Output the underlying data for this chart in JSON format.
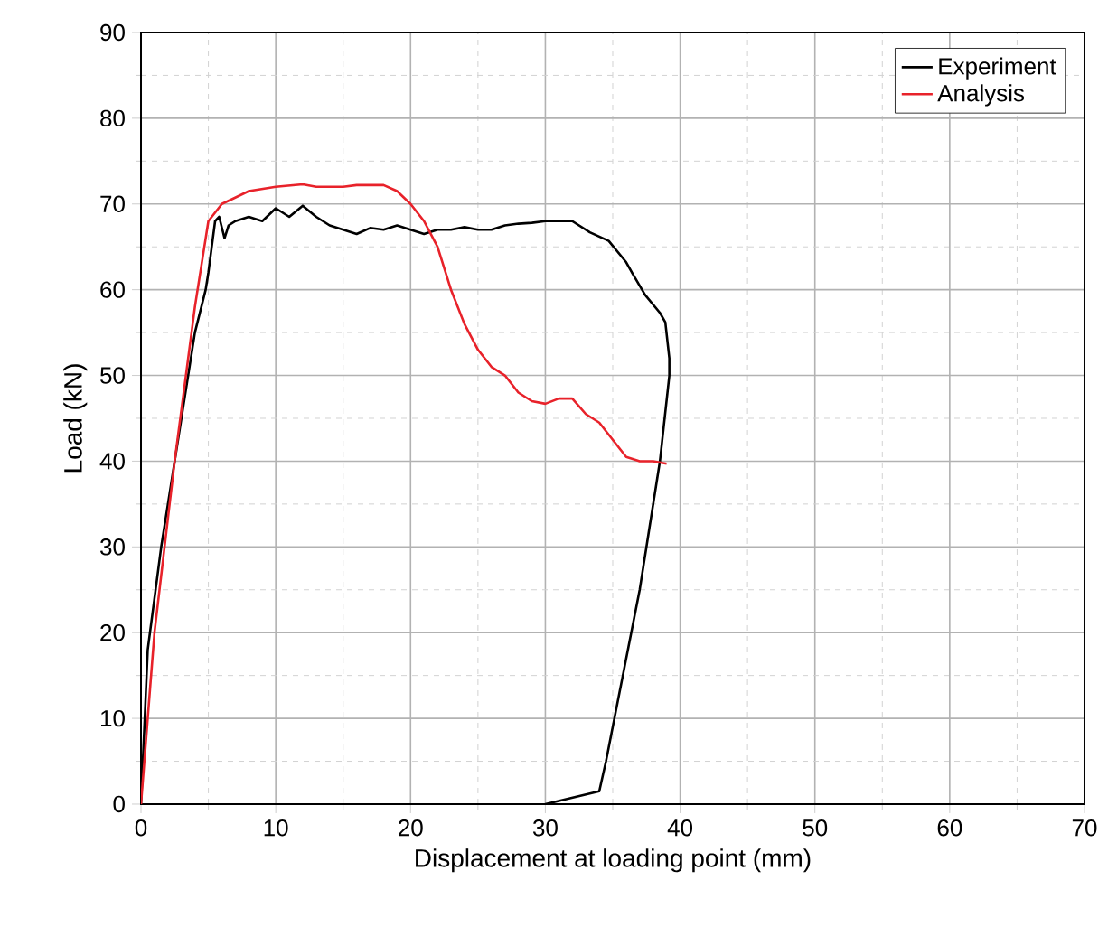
{
  "chart_data": {
    "type": "line",
    "xlabel": "Displacement at loading point (mm)",
    "ylabel": "Load (kN)",
    "xlim": [
      0,
      70
    ],
    "ylim": [
      0,
      90
    ],
    "xticks": [
      0,
      10,
      20,
      30,
      40,
      50,
      60,
      70
    ],
    "yticks": [
      0,
      10,
      20,
      30,
      40,
      50,
      60,
      70,
      80,
      90
    ],
    "grid": true,
    "legend": "top right",
    "line_style": "solid",
    "marker": "none",
    "series": [
      {
        "name": "Experiment",
        "color": "#000000",
        "x": [
          0,
          0.5,
          1.5,
          3,
          4,
          4.8,
          5,
          5.5,
          5.8,
          6.2,
          6.5,
          7,
          8,
          9,
          10,
          11,
          12,
          13,
          14,
          15,
          16,
          17,
          18,
          19,
          20,
          21,
          22,
          23,
          24,
          25,
          26,
          27,
          28,
          29,
          30,
          31,
          32,
          33.3,
          34.7,
          36,
          36.5,
          37.4,
          38.5,
          38.9,
          39.2,
          39.2,
          38.5,
          37,
          35.5,
          34.5,
          34,
          30
        ],
        "values": [
          0,
          18,
          30,
          45,
          55,
          60,
          62,
          68,
          68.5,
          66,
          67.5,
          68,
          68.5,
          68,
          69.5,
          68.5,
          69.8,
          68.5,
          67.5,
          67,
          66.5,
          67.2,
          67,
          67.5,
          67,
          66.5,
          67,
          67,
          67.3,
          67,
          67,
          67.5,
          67.7,
          67.8,
          68,
          68,
          68,
          66.7,
          65.7,
          63.2,
          61.8,
          59.4,
          57.3,
          56.2,
          52,
          50,
          40,
          25,
          13,
          5,
          1.5,
          0
        ]
      },
      {
        "name": "Analysis",
        "color": "#e8222a",
        "x": [
          0,
          1,
          2.5,
          4,
          5,
          6,
          8,
          10,
          12,
          13,
          15,
          16,
          18,
          19,
          20,
          21,
          22,
          23,
          24,
          25,
          26,
          27,
          28,
          29,
          30,
          31,
          32,
          33,
          34,
          35,
          36,
          37,
          38,
          39
        ],
        "values": [
          0,
          20,
          40,
          58,
          68,
          70,
          71.5,
          72,
          72.3,
          72,
          72,
          72.2,
          72.2,
          71.5,
          70,
          68,
          65,
          60,
          56,
          53,
          51,
          50,
          48,
          47,
          46.7,
          47.3,
          47.3,
          45.5,
          44.5,
          42.5,
          40.5,
          40,
          40,
          39.7
        ]
      }
    ]
  }
}
